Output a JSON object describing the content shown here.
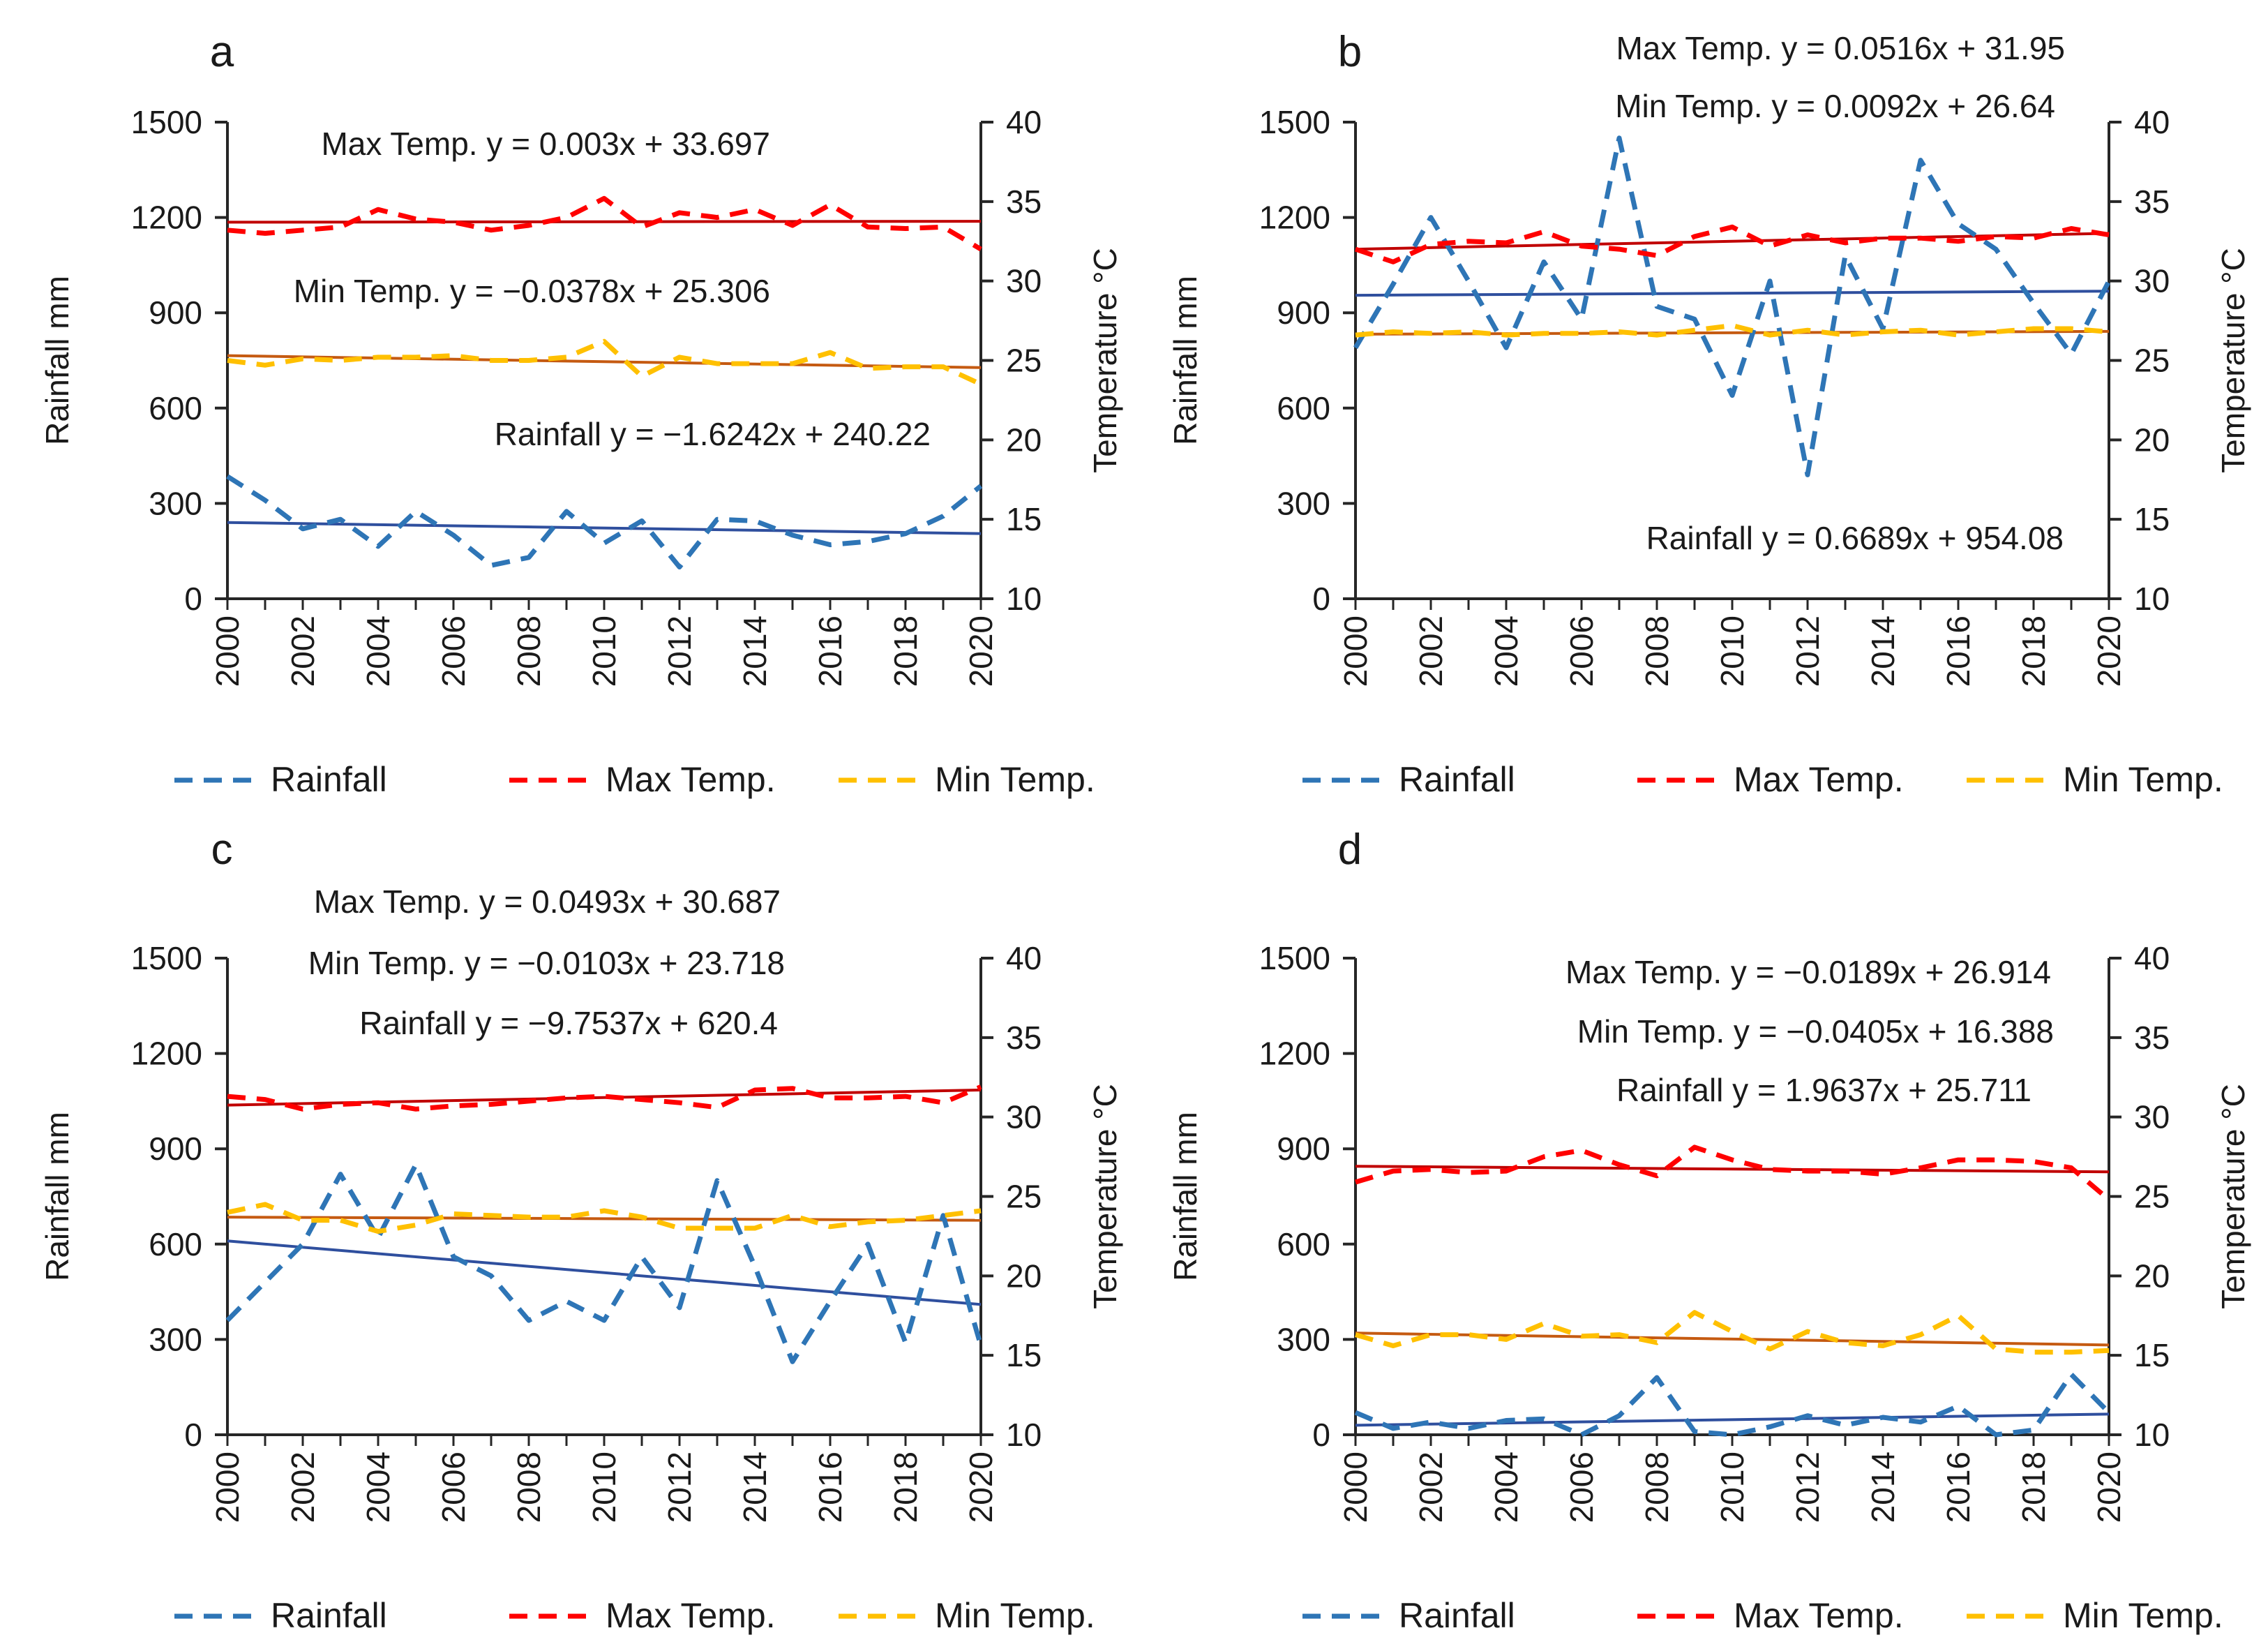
{
  "figure": {
    "colors": {
      "rainfall": "#2e75b6",
      "max_temp": "#ff0000",
      "min_temp": "#ffc000",
      "trend_rainfall": "#2f4f9e",
      "trend_max": "#c00000",
      "trend_min": "#c55a11",
      "axis": "#262626"
    },
    "legend": [
      "Rainfall",
      "Max Temp.",
      "Min Temp."
    ]
  },
  "chart_data": [
    {
      "type": "line",
      "panel": "a",
      "x": [
        2000,
        2001,
        2002,
        2003,
        2004,
        2005,
        2006,
        2007,
        2008,
        2009,
        2010,
        2011,
        2012,
        2013,
        2014,
        2015,
        2016,
        2017,
        2018,
        2019,
        2020
      ],
      "xticks": [
        "2000",
        "2002",
        "2004",
        "2006",
        "2008",
        "2010",
        "2012",
        "2014",
        "2016",
        "2018",
        "2020"
      ],
      "ylabel": "Rainfall mm",
      "y2label": "Temperature °C",
      "ylim": [
        0,
        1500
      ],
      "yticks": [
        "0",
        "300",
        "600",
        "900",
        "1200",
        "1500"
      ],
      "y2lim": [
        10,
        40
      ],
      "y2ticks": [
        "10",
        "15",
        "20",
        "25",
        "30",
        "35",
        "40"
      ],
      "series": [
        {
          "name": "Rainfall",
          "axis": "left",
          "values": [
            385,
            310,
            220,
            250,
            165,
            275,
            200,
            105,
            130,
            275,
            175,
            245,
            100,
            250,
            245,
            200,
            170,
            180,
            205,
            260,
            355
          ]
        },
        {
          "name": "Max Temp.",
          "axis": "right",
          "values": [
            33.2,
            33.0,
            33.2,
            33.4,
            34.5,
            33.9,
            33.7,
            33.2,
            33.5,
            34.0,
            35.2,
            33.4,
            34.3,
            34.0,
            34.5,
            33.5,
            34.8,
            33.4,
            33.3,
            33.4,
            32.0
          ]
        },
        {
          "name": "Min Temp.",
          "axis": "right",
          "values": [
            25.0,
            24.7,
            25.1,
            25.0,
            25.2,
            25.2,
            25.3,
            25.0,
            25.0,
            25.2,
            26.2,
            24.0,
            25.2,
            24.8,
            24.8,
            24.8,
            25.5,
            24.5,
            24.6,
            24.6,
            23.5
          ]
        }
      ],
      "trendlines": [
        {
          "series": "Rainfall",
          "axis": "left",
          "start": 240,
          "end": 205
        },
        {
          "series": "Max Temp.",
          "axis": "right",
          "start": 33.7,
          "end": 33.76
        },
        {
          "series": "Min Temp.",
          "axis": "right",
          "start": 25.3,
          "end": 24.55
        }
      ],
      "annotations": [
        "Max Temp. y = 0.003x + 33.697",
        "Min Temp. y = −0.0378x + 25.306",
        "Rainfall y = −1.6242x + 240.22"
      ]
    },
    {
      "type": "line",
      "panel": "b",
      "x": [
        2000,
        2001,
        2002,
        2003,
        2004,
        2005,
        2006,
        2007,
        2008,
        2009,
        2010,
        2011,
        2012,
        2013,
        2014,
        2015,
        2016,
        2017,
        2018,
        2019,
        2020
      ],
      "xticks": [
        "2000",
        "2002",
        "2004",
        "2006",
        "2008",
        "2010",
        "2012",
        "2014",
        "2016",
        "2018",
        "2020"
      ],
      "ylabel": "Rainfall mm",
      "y2label": "Temperature °C",
      "ylim": [
        0,
        1500
      ],
      "yticks": [
        "0",
        "300",
        "600",
        "900",
        "1200",
        "1500"
      ],
      "y2lim": [
        10,
        40
      ],
      "y2ticks": [
        "10",
        "15",
        "20",
        "25",
        "30",
        "35",
        "40"
      ],
      "series": [
        {
          "name": "Rainfall",
          "axis": "left",
          "values": [
            790,
            990,
            1200,
            1000,
            790,
            1060,
            880,
            1450,
            920,
            880,
            640,
            1000,
            390,
            1080,
            850,
            1380,
            1180,
            1100,
            930,
            770,
            1000
          ]
        },
        {
          "name": "Max Temp.",
          "axis": "right",
          "values": [
            32.0,
            31.2,
            32.3,
            32.5,
            32.4,
            33.1,
            32.2,
            32.0,
            31.6,
            32.8,
            33.4,
            32.2,
            32.9,
            32.4,
            32.7,
            32.7,
            32.5,
            32.8,
            32.7,
            33.3,
            32.9
          ]
        },
        {
          "name": "Min Temp.",
          "axis": "right",
          "values": [
            26.6,
            26.8,
            26.7,
            26.8,
            26.6,
            26.7,
            26.7,
            26.8,
            26.6,
            26.9,
            27.2,
            26.6,
            26.9,
            26.6,
            26.8,
            26.9,
            26.6,
            26.8,
            27.0,
            27.0,
            26.8
          ]
        }
      ],
      "trendlines": [
        {
          "series": "Rainfall",
          "axis": "left",
          "start": 955,
          "end": 968
        },
        {
          "series": "Max Temp.",
          "axis": "right",
          "start": 32.0,
          "end": 33.0
        },
        {
          "series": "Min Temp.",
          "axis": "right",
          "start": 26.65,
          "end": 26.83
        }
      ],
      "annotations": [
        "Max Temp. y = 0.0516x + 31.95",
        "Min Temp. y = 0.0092x + 26.64",
        "Rainfall y = 0.6689x + 954.08"
      ]
    },
    {
      "type": "line",
      "panel": "c",
      "x": [
        2000,
        2001,
        2002,
        2003,
        2004,
        2005,
        2006,
        2007,
        2008,
        2009,
        2010,
        2011,
        2012,
        2013,
        2014,
        2015,
        2016,
        2017,
        2018,
        2019,
        2020
      ],
      "xticks": [
        "2000",
        "2002",
        "2004",
        "2006",
        "2008",
        "2010",
        "2012",
        "2014",
        "2016",
        "2018",
        "2020"
      ],
      "ylabel": "Rainfall mm",
      "y2label": "Temperature °C",
      "ylim": [
        0,
        1500
      ],
      "yticks": [
        "0",
        "300",
        "600",
        "900",
        "1200",
        "1500"
      ],
      "y2lim": [
        10,
        40
      ],
      "y2ticks": [
        "10",
        "15",
        "20",
        "25",
        "30",
        "35",
        "40"
      ],
      "series": [
        {
          "name": "Rainfall",
          "axis": "left",
          "values": [
            360,
            480,
            600,
            820,
            620,
            850,
            560,
            500,
            360,
            420,
            360,
            560,
            400,
            800,
            530,
            230,
            420,
            600,
            290,
            690,
            280
          ]
        },
        {
          "name": "Max Temp.",
          "axis": "right",
          "values": [
            31.3,
            31.1,
            30.5,
            30.8,
            30.9,
            30.5,
            30.7,
            30.8,
            31.0,
            31.2,
            31.3,
            31.1,
            30.9,
            30.6,
            31.7,
            31.8,
            31.2,
            31.2,
            31.3,
            30.9,
            31.9
          ]
        },
        {
          "name": "Min Temp.",
          "axis": "right",
          "values": [
            24.0,
            24.5,
            23.5,
            23.5,
            22.8,
            23.2,
            23.9,
            23.8,
            23.7,
            23.7,
            24.1,
            23.7,
            23.0,
            23.0,
            23.0,
            23.8,
            23.1,
            23.4,
            23.5,
            23.8,
            24.1
          ]
        }
      ],
      "trendlines": [
        {
          "series": "Rainfall",
          "axis": "left",
          "start": 610,
          "end": 410
        },
        {
          "series": "Max Temp.",
          "axis": "right",
          "start": 30.75,
          "end": 31.7
        },
        {
          "series": "Min Temp.",
          "axis": "right",
          "start": 23.7,
          "end": 23.5
        }
      ],
      "annotations": [
        "Max Temp. y = 0.0493x + 30.687",
        "Min Temp. y = −0.0103x + 23.718",
        "Rainfall y = −9.7537x + 620.4"
      ]
    },
    {
      "type": "line",
      "panel": "d",
      "x": [
        2000,
        2001,
        2002,
        2003,
        2004,
        2005,
        2006,
        2007,
        2008,
        2009,
        2010,
        2011,
        2012,
        2013,
        2014,
        2015,
        2016,
        2017,
        2018,
        2019,
        2020
      ],
      "xticks": [
        "2000",
        "2002",
        "2004",
        "2006",
        "2008",
        "2010",
        "2012",
        "2014",
        "2016",
        "2018",
        "2020"
      ],
      "ylabel": "Rainfall mm",
      "y2label": "Temperature °C",
      "ylim": [
        0,
        1500
      ],
      "yticks": [
        "0",
        "300",
        "600",
        "900",
        "1200",
        "1500"
      ],
      "y2lim": [
        10,
        40
      ],
      "y2ticks": [
        "10",
        "15",
        "20",
        "25",
        "30",
        "35",
        "40"
      ],
      "series": [
        {
          "name": "Rainfall",
          "axis": "left",
          "values": [
            70,
            20,
            40,
            20,
            45,
            50,
            0,
            60,
            180,
            10,
            0,
            25,
            60,
            30,
            55,
            40,
            90,
            0,
            15,
            190,
            70
          ]
        },
        {
          "name": "Max Temp.",
          "axis": "right",
          "values": [
            25.9,
            26.6,
            26.7,
            26.5,
            26.6,
            27.5,
            27.9,
            27.0,
            26.3,
            28.1,
            27.3,
            26.7,
            26.6,
            26.6,
            26.4,
            26.8,
            27.3,
            27.3,
            27.2,
            26.8,
            24.8
          ]
        },
        {
          "name": "Min Temp.",
          "axis": "right",
          "values": [
            16.3,
            15.6,
            16.3,
            16.3,
            16.0,
            17.0,
            16.2,
            16.3,
            15.8,
            17.7,
            16.5,
            15.4,
            16.5,
            15.8,
            15.6,
            16.3,
            17.5,
            15.4,
            15.2,
            15.2,
            15.3
          ]
        }
      ],
      "trendlines": [
        {
          "series": "Rainfall",
          "axis": "left",
          "start": 30,
          "end": 65
        },
        {
          "series": "Max Temp.",
          "axis": "right",
          "start": 26.9,
          "end": 26.55
        },
        {
          "series": "Min Temp.",
          "axis": "right",
          "start": 16.4,
          "end": 15.65
        }
      ],
      "annotations": [
        "Max Temp. y = −0.0189x + 26.914",
        "Min Temp. y = −0.0405x + 16.388",
        "Rainfall y = 1.9637x + 25.711"
      ]
    }
  ]
}
